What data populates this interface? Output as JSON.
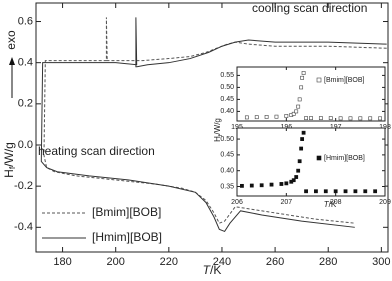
{
  "chart_data": [
    {
      "type": "line",
      "xlabel": {
        "main": "T",
        "suffix": "/K"
      },
      "ylabel": {
        "main": "H",
        "subscript": "f",
        "suffix": "/W/g"
      },
      "annotations": [
        "cooling scan direction",
        "heating scan direction",
        "exo"
      ],
      "xlim": [
        170,
        302.5
      ],
      "ylim": [
        -0.52,
        0.69
      ],
      "xticks": [
        180,
        200,
        220,
        240,
        260,
        280,
        300
      ],
      "yticks": [
        0.6,
        0.4,
        0.2,
        {
          "value": 0,
          "label": "0.0"
        },
        -0.2,
        -0.4
      ],
      "legend": "lower left",
      "series": [
        {
          "name": "[Bmim][BOB]",
          "color": "#555555",
          "line_style": "dashed",
          "x": [
            302,
            280,
            260,
            250,
            245,
            242,
            238,
            234,
            228,
            220,
            210,
            200,
            196.5,
            196.5,
            196.8,
            190,
            180,
            175,
            173.5,
            173,
            174,
            177,
            185,
            200,
            215,
            225,
            230,
            234,
            237,
            239,
            241,
            245,
            250,
            260,
            275,
            290
          ],
          "values": [
            0.47,
            0.48,
            0.48,
            0.49,
            0.5,
            0.49,
            0.47,
            0.45,
            0.43,
            0.42,
            0.41,
            0.41,
            0.41,
            0.62,
            0.41,
            0.41,
            0.41,
            0.41,
            0.41,
            -0.05,
            -0.11,
            -0.13,
            -0.15,
            -0.17,
            -0.19,
            -0.21,
            -0.23,
            -0.27,
            -0.33,
            -0.38,
            -0.37,
            -0.3,
            -0.31,
            -0.33,
            -0.36,
            -0.38
          ]
        },
        {
          "name": "[Hmim][BOB]",
          "color": "#333333",
          "line_style": "solid",
          "x": [
            302,
            280,
            260,
            250,
            245,
            240,
            235,
            228,
            220,
            212,
            208,
            207.6,
            207.6,
            207.9,
            200,
            190,
            180,
            175,
            172.5,
            172,
            174,
            178,
            190,
            205,
            220,
            230,
            234,
            237,
            239,
            241,
            243,
            247,
            255,
            270,
            290
          ],
          "values": [
            0.49,
            0.5,
            0.5,
            0.51,
            0.5,
            0.48,
            0.45,
            0.42,
            0.4,
            0.39,
            0.38,
            0.38,
            0.62,
            0.39,
            0.4,
            0.4,
            0.4,
            0.4,
            0.4,
            -0.08,
            -0.11,
            -0.13,
            -0.15,
            -0.17,
            -0.2,
            -0.23,
            -0.28,
            -0.35,
            -0.41,
            -0.42,
            -0.38,
            -0.32,
            -0.34,
            -0.37,
            -0.4
          ]
        }
      ]
    },
    {
      "type": "scatter",
      "xlim": [
        195,
        198
      ],
      "ylim": [
        0.36,
        0.585
      ],
      "xticks": [
        195,
        196,
        197,
        198
      ],
      "yticks": [
        {
          "value": 0.4,
          "label": "0.40"
        },
        0.45,
        {
          "value": 0.5,
          "label": "0.50"
        },
        0.55
      ],
      "series": [
        {
          "name": "[Bmim][BOB]",
          "color": "#444444",
          "marker": "open-square",
          "x": [
            195.2,
            195.4,
            195.6,
            195.8,
            196.0,
            196.1,
            196.15,
            196.2,
            196.24,
            196.27,
            196.3,
            196.32,
            196.35,
            196.4,
            196.5,
            196.7,
            196.9,
            197.1,
            197.3,
            197.5,
            197.7,
            197.9
          ],
          "values": [
            0.375,
            0.376,
            0.377,
            0.378,
            0.381,
            0.385,
            0.39,
            0.4,
            0.42,
            0.45,
            0.5,
            0.54,
            0.56,
            0.372,
            0.372,
            0.372,
            0.372,
            0.371,
            0.371,
            0.371,
            0.371,
            0.371
          ]
        }
      ]
    },
    {
      "type": "scatter",
      "xlabel": {
        "main": "T",
        "suffix": "/K"
      },
      "ylabel": {
        "main": "H",
        "subscript": "f",
        "suffix": "/W/g"
      },
      "xlim": [
        206,
        209
      ],
      "ylim": [
        0.32,
        0.535
      ],
      "xticks": [
        206,
        207,
        208,
        209
      ],
      "yticks": [
        0.35,
        {
          "value": 0.4,
          "label": "0.40"
        },
        0.45,
        {
          "value": 0.5,
          "label": "0.50"
        }
      ],
      "series": [
        {
          "name": "[Hmim][BOB]",
          "color": "#111111",
          "marker": "square",
          "x": [
            206.1,
            206.3,
            206.5,
            206.7,
            206.9,
            207.0,
            207.1,
            207.15,
            207.2,
            207.24,
            207.27,
            207.3,
            207.32,
            207.35,
            207.4,
            207.6,
            207.8,
            208.0,
            208.2,
            208.4,
            208.6,
            208.8
          ],
          "values": [
            0.352,
            0.353,
            0.354,
            0.356,
            0.358,
            0.36,
            0.365,
            0.37,
            0.38,
            0.4,
            0.43,
            0.47,
            0.5,
            0.52,
            0.335,
            0.335,
            0.335,
            0.335,
            0.335,
            0.335,
            0.335,
            0.335
          ]
        }
      ]
    }
  ]
}
